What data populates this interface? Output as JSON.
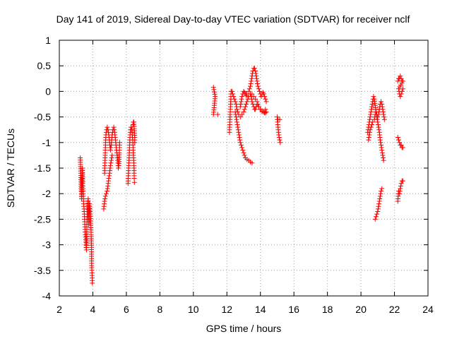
{
  "chart_data": {
    "type": "scatter",
    "title": "Day 141 of 2019, Sidereal Day-to-day VTEC variation (SDTVAR) for receiver nclf",
    "xlabel": "GPS time / hours",
    "ylabel": "SDTVAR / TECUs",
    "xlim": [
      2,
      24
    ],
    "ylim": [
      -4,
      1
    ],
    "xticks": [
      "2",
      "4",
      "6",
      "8",
      "10",
      "12",
      "14",
      "16",
      "18",
      "20",
      "22",
      "24"
    ],
    "yticks": [
      "1",
      "0.5",
      "0",
      "-0.5",
      "-1",
      "-1.5",
      "-2",
      "-2.5",
      "-3",
      "-3.5",
      "-4"
    ],
    "grid": true,
    "marker": "+",
    "color": "#ff0000",
    "series": [
      {
        "name": "SDTVAR",
        "tracks": [
          [
            [
              3.25,
              -1.3
            ],
            [
              3.28,
              -1.6
            ],
            [
              3.3,
              -1.9
            ],
            [
              3.33,
              -2.1
            ],
            [
              3.36,
              -1.7
            ],
            [
              3.38,
              -1.5
            ],
            [
              3.4,
              -1.8
            ],
            [
              3.42,
              -2.0
            ],
            [
              3.45,
              -2.2
            ],
            [
              3.48,
              -2.3
            ],
            [
              3.5,
              -2.45
            ],
            [
              3.52,
              -2.6
            ],
            [
              3.55,
              -2.8
            ],
            [
              3.58,
              -2.9
            ],
            [
              3.6,
              -3.05
            ],
            [
              3.62,
              -3.1
            ],
            [
              3.64,
              -2.7
            ],
            [
              3.66,
              -2.5
            ],
            [
              3.68,
              -2.4
            ],
            [
              3.7,
              -2.2
            ],
            [
              3.72,
              -2.1
            ],
            [
              3.74,
              -2.4
            ],
            [
              3.76,
              -2.6
            ],
            [
              3.8,
              -2.2
            ],
            [
              3.85,
              -2.4
            ],
            [
              3.9,
              -2.8
            ],
            [
              3.92,
              -3.05
            ],
            [
              3.93,
              -3.45
            ],
            [
              3.95,
              -3.55
            ],
            [
              3.97,
              -3.75
            ]
          ],
          [
            [
              4.65,
              -2.3
            ],
            [
              4.7,
              -2.15
            ],
            [
              4.75,
              -2.05
            ],
            [
              4.8,
              -2.0
            ],
            [
              4.85,
              -1.95
            ],
            [
              4.9,
              -1.85
            ],
            [
              4.95,
              -1.7
            ],
            [
              5.0,
              -1.6
            ],
            [
              5.05,
              -1.45
            ],
            [
              5.1,
              -1.35
            ],
            [
              5.15,
              -1.25
            ]
          ],
          [
            [
              4.7,
              -1.6
            ],
            [
              4.72,
              -1.4
            ],
            [
              4.74,
              -1.2
            ],
            [
              4.76,
              -1.0
            ],
            [
              4.78,
              -0.85
            ],
            [
              4.82,
              -0.75
            ],
            [
              4.86,
              -0.7
            ],
            [
              4.9,
              -0.75
            ],
            [
              4.95,
              -0.85
            ],
            [
              5.0,
              -1.0
            ],
            [
              5.05,
              -1.15
            ],
            [
              5.1,
              -1.05
            ],
            [
              5.15,
              -0.85
            ],
            [
              5.2,
              -0.75
            ],
            [
              5.25,
              -0.7
            ],
            [
              5.3,
              -0.8
            ],
            [
              5.35,
              -0.95
            ],
            [
              5.4,
              -1.1
            ],
            [
              5.45,
              -1.25
            ],
            [
              5.5,
              -1.4
            ],
            [
              5.52,
              -1.5
            ],
            [
              5.55,
              -1.45
            ],
            [
              5.58,
              -1.2
            ],
            [
              5.6,
              -1.0
            ]
          ],
          [
            [
              6.1,
              -1.8
            ],
            [
              6.12,
              -1.6
            ],
            [
              6.15,
              -1.4
            ],
            [
              6.18,
              -1.2
            ],
            [
              6.2,
              -1.0
            ],
            [
              6.22,
              -0.85
            ],
            [
              6.25,
              -0.75
            ],
            [
              6.28,
              -0.7
            ],
            [
              6.32,
              -0.75
            ],
            [
              6.35,
              -0.85
            ],
            [
              6.38,
              -0.95
            ],
            [
              6.4,
              -1.1
            ],
            [
              6.42,
              -1.25
            ],
            [
              6.45,
              -1.4
            ],
            [
              6.46,
              -1.55
            ],
            [
              6.47,
              -1.7
            ],
            [
              6.48,
              -1.78
            ],
            [
              6.4,
              -0.65
            ],
            [
              6.42,
              -0.6
            ],
            [
              6.45,
              -0.6
            ],
            [
              6.5,
              -0.9
            ],
            [
              6.5,
              -1.0
            ]
          ],
          [
            [
              11.2,
              0.08
            ],
            [
              11.3,
              -0.1
            ],
            [
              11.2,
              -0.45
            ],
            [
              11.45,
              -0.45
            ]
          ],
          [
            [
              12.15,
              -0.8
            ],
            [
              12.18,
              -0.6
            ],
            [
              12.2,
              -0.4
            ],
            [
              12.23,
              -0.2
            ],
            [
              12.25,
              0.0
            ],
            [
              12.3,
              0.0
            ],
            [
              12.35,
              -0.05
            ],
            [
              12.4,
              -0.1
            ],
            [
              12.5,
              -0.2
            ],
            [
              12.55,
              -0.25
            ],
            [
              12.6,
              -0.35
            ],
            [
              12.7,
              -0.45
            ],
            [
              12.8,
              -0.5
            ],
            [
              12.9,
              -0.45
            ],
            [
              13.0,
              -0.4
            ],
            [
              13.1,
              -0.3
            ],
            [
              13.2,
              -0.2
            ],
            [
              13.3,
              -0.1
            ],
            [
              13.4,
              -0.05
            ],
            [
              13.5,
              -0.05
            ],
            [
              13.6,
              -0.1
            ],
            [
              13.7,
              -0.15
            ],
            [
              13.8,
              -0.2
            ],
            [
              13.9,
              -0.3
            ],
            [
              14.0,
              -0.35
            ],
            [
              14.1,
              -0.4
            ],
            [
              14.2,
              -0.4
            ],
            [
              14.3,
              -0.35
            ]
          ],
          [
            [
              12.5,
              -0.4
            ],
            [
              12.55,
              -0.5
            ],
            [
              12.6,
              -0.6
            ],
            [
              12.65,
              -0.7
            ],
            [
              12.7,
              -0.8
            ],
            [
              12.75,
              -0.9
            ],
            [
              12.8,
              -1.0
            ],
            [
              12.85,
              -1.05
            ],
            [
              12.9,
              -1.1
            ],
            [
              12.95,
              -1.15
            ],
            [
              13.0,
              -1.2
            ],
            [
              13.05,
              -1.25
            ],
            [
              13.1,
              -1.3
            ],
            [
              13.2,
              -1.33
            ],
            [
              13.3,
              -1.35
            ],
            [
              13.4,
              -1.38
            ],
            [
              13.5,
              -1.4
            ]
          ],
          [
            [
              12.8,
              -0.3
            ],
            [
              12.85,
              -0.2
            ],
            [
              12.9,
              -0.1
            ],
            [
              12.95,
              -0.05
            ],
            [
              13.0,
              0.0
            ],
            [
              13.05,
              -0.02
            ],
            [
              13.1,
              -0.05
            ],
            [
              13.15,
              -0.08
            ],
            [
              13.2,
              -0.05
            ],
            [
              13.3,
              0.0
            ],
            [
              13.35,
              0.05
            ],
            [
              13.4,
              0.1
            ],
            [
              13.45,
              0.2
            ],
            [
              13.5,
              0.3
            ],
            [
              13.55,
              0.4
            ],
            [
              13.6,
              0.45
            ],
            [
              13.65,
              0.45
            ],
            [
              13.7,
              0.4
            ],
            [
              13.75,
              0.3
            ],
            [
              13.8,
              0.2
            ],
            [
              13.85,
              0.1
            ],
            [
              13.9,
              0.05
            ],
            [
              13.95,
              0.0
            ],
            [
              14.0,
              -0.05
            ],
            [
              14.05,
              -0.1
            ],
            [
              14.1,
              -0.05
            ],
            [
              14.15,
              -0.02
            ],
            [
              14.2,
              -0.05
            ],
            [
              14.25,
              -0.1
            ],
            [
              14.3,
              -0.15
            ],
            [
              14.35,
              -0.2
            ]
          ],
          [
            [
              13.4,
              -0.05
            ],
            [
              13.45,
              -0.1
            ],
            [
              13.5,
              -0.2
            ],
            [
              13.55,
              -0.25
            ],
            [
              13.6,
              -0.3
            ],
            [
              13.65,
              -0.35
            ],
            [
              13.7,
              -0.35
            ],
            [
              13.75,
              -0.3
            ],
            [
              13.8,
              -0.25
            ],
            [
              13.9,
              -0.3
            ],
            [
              14.0,
              -0.35
            ],
            [
              14.1,
              -0.38
            ],
            [
              14.2,
              -0.4
            ],
            [
              14.25,
              -0.42
            ],
            [
              14.3,
              -0.42
            ],
            [
              14.35,
              -0.4
            ]
          ],
          [
            [
              15.0,
              -0.5
            ],
            [
              15.02,
              -0.6
            ],
            [
              15.05,
              -0.7
            ],
            [
              15.08,
              -0.8
            ],
            [
              15.1,
              -0.85
            ],
            [
              15.12,
              -0.9
            ],
            [
              15.15,
              -0.95
            ],
            [
              15.18,
              -1.0
            ],
            [
              15.05,
              -0.55
            ],
            [
              15.15,
              -0.55
            ]
          ],
          [
            [
              20.4,
              -0.8
            ],
            [
              20.45,
              -0.7
            ],
            [
              20.5,
              -0.6
            ],
            [
              20.55,
              -0.5
            ],
            [
              20.6,
              -0.4
            ],
            [
              20.65,
              -0.3
            ],
            [
              20.7,
              -0.2
            ],
            [
              20.75,
              -0.1
            ],
            [
              20.8,
              -0.15
            ],
            [
              20.9,
              -0.4
            ],
            [
              21.0,
              -0.6
            ],
            [
              21.1,
              -0.8
            ],
            [
              21.15,
              -0.95
            ],
            [
              21.2,
              -1.05
            ],
            [
              21.25,
              -1.15
            ],
            [
              21.3,
              -1.25
            ],
            [
              21.35,
              -1.35
            ]
          ],
          [
            [
              20.45,
              -0.95
            ],
            [
              20.5,
              -0.85
            ],
            [
              20.55,
              -0.75
            ],
            [
              20.6,
              -0.7
            ],
            [
              20.65,
              -0.65
            ],
            [
              20.7,
              -0.6
            ],
            [
              20.8,
              -0.55
            ],
            [
              20.85,
              -0.45
            ],
            [
              20.9,
              -0.4
            ],
            [
              20.95,
              -0.45
            ],
            [
              21.0,
              -0.5
            ],
            [
              21.05,
              -0.45
            ],
            [
              21.1,
              -0.35
            ],
            [
              21.15,
              -0.25
            ],
            [
              21.2,
              -0.2
            ],
            [
              21.25,
              -0.25
            ],
            [
              21.3,
              -0.35
            ],
            [
              21.35,
              -0.45
            ],
            [
              21.4,
              -0.55
            ]
          ],
          [
            [
              20.85,
              -2.5
            ],
            [
              20.9,
              -2.45
            ],
            [
              20.95,
              -2.4
            ],
            [
              21.0,
              -2.35
            ],
            [
              21.05,
              -2.25
            ],
            [
              21.1,
              -2.15
            ],
            [
              21.15,
              -2.05
            ],
            [
              21.2,
              -1.95
            ],
            [
              21.25,
              -1.9
            ]
          ],
          [
            [
              22.2,
              -2.15
            ],
            [
              22.22,
              -2.05
            ],
            [
              22.25,
              -1.95
            ],
            [
              22.3,
              -2.0
            ],
            [
              22.35,
              -1.9
            ],
            [
              22.4,
              -1.8
            ],
            [
              22.45,
              -1.75
            ],
            [
              22.5,
              -1.75
            ]
          ],
          [
            [
              22.2,
              -0.9
            ],
            [
              22.25,
              -0.95
            ],
            [
              22.3,
              -1.0
            ],
            [
              22.35,
              -1.05
            ],
            [
              22.4,
              -1.05
            ],
            [
              22.45,
              -1.1
            ],
            [
              22.5,
              -1.1
            ]
          ],
          [
            [
              22.2,
              0.2
            ],
            [
              22.25,
              0.25
            ],
            [
              22.3,
              0.25
            ],
            [
              22.35,
              0.3
            ],
            [
              22.4,
              0.25
            ],
            [
              22.45,
              0.2
            ],
            [
              22.5,
              0.2
            ],
            [
              22.25,
              0.05
            ],
            [
              22.3,
              -0.05
            ],
            [
              22.35,
              -0.1
            ],
            [
              22.4,
              -0.05
            ],
            [
              22.45,
              0.0
            ],
            [
              22.5,
              0.05
            ]
          ]
        ]
      }
    ]
  }
}
